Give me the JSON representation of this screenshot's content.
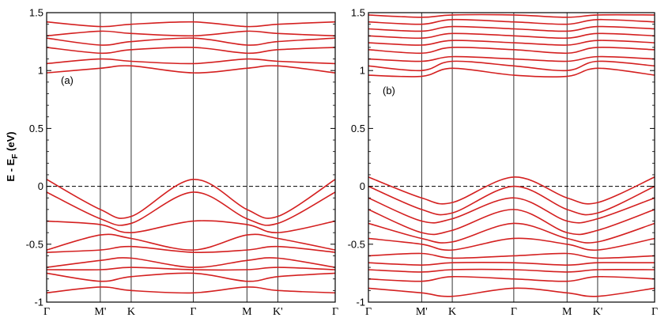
{
  "colors": {
    "band": "#d42020",
    "axis": "#000000",
    "fermi": "#000000"
  },
  "ylabel": "E - E",
  "ylabel_sub": "F",
  "ylabel_unit": " (eV)",
  "chart_data": [
    {
      "type": "line",
      "panel_label": "(a)",
      "ylabel": "E - E_F (eV)",
      "ylim": [
        -1,
        1.5
      ],
      "yticks": [
        "-1",
        "-0.5",
        "0",
        "0.5",
        "1",
        "1.5"
      ],
      "ytick_values": [
        -1,
        -0.5,
        0,
        0.5,
        1,
        1.5
      ],
      "kpath": [
        {
          "label": "Γ",
          "pos": 0
        },
        {
          "label": "M'",
          "pos": 0.186
        },
        {
          "label": "K",
          "pos": 0.293
        },
        {
          "label": "Γ",
          "pos": 0.508
        },
        {
          "label": "M",
          "pos": 0.694
        },
        {
          "label": "K'",
          "pos": 0.801
        },
        {
          "label": "Γ",
          "pos": 1
        }
      ],
      "fermi_level": 0,
      "series": [
        {
          "x": [
            0,
            0.186,
            0.293,
            0.508,
            0.694,
            0.801,
            1
          ],
          "y": [
            0.06,
            -0.2,
            -0.26,
            0.06,
            -0.2,
            -0.26,
            0.06
          ]
        },
        {
          "x": [
            0,
            0.186,
            0.293,
            0.508,
            0.694,
            0.801,
            1
          ],
          "y": [
            -0.05,
            -0.28,
            -0.32,
            -0.05,
            -0.28,
            -0.32,
            -0.05
          ]
        },
        {
          "x": [
            0,
            0.186,
            0.293,
            0.508,
            0.694,
            0.801,
            1
          ],
          "y": [
            -0.3,
            -0.33,
            -0.4,
            -0.3,
            -0.33,
            -0.4,
            -0.3
          ]
        },
        {
          "x": [
            0,
            0.186,
            0.293,
            0.508,
            0.694,
            0.801,
            1
          ],
          "y": [
            -0.55,
            -0.42,
            -0.45,
            -0.55,
            -0.42,
            -0.45,
            -0.55
          ]
        },
        {
          "x": [
            0,
            0.186,
            0.293,
            0.508,
            0.694,
            0.801,
            1
          ],
          "y": [
            -0.57,
            -0.55,
            -0.52,
            -0.57,
            -0.55,
            -0.52,
            -0.57
          ]
        },
        {
          "x": [
            0,
            0.186,
            0.293,
            0.508,
            0.694,
            0.801,
            1
          ],
          "y": [
            -0.7,
            -0.64,
            -0.62,
            -0.7,
            -0.64,
            -0.62,
            -0.7
          ]
        },
        {
          "x": [
            0,
            0.186,
            0.293,
            0.508,
            0.694,
            0.801,
            1
          ],
          "y": [
            -0.72,
            -0.72,
            -0.7,
            -0.72,
            -0.72,
            -0.7,
            -0.72
          ]
        },
        {
          "x": [
            0,
            0.186,
            0.293,
            0.508,
            0.694,
            0.801,
            1
          ],
          "y": [
            -0.75,
            -0.82,
            -0.78,
            -0.75,
            -0.82,
            -0.78,
            -0.75
          ]
        },
        {
          "x": [
            0,
            0.186,
            0.293,
            0.508,
            0.694,
            0.801,
            1
          ],
          "y": [
            -0.92,
            -0.87,
            -0.9,
            -0.92,
            -0.87,
            -0.9,
            -0.92
          ]
        },
        {
          "x": [
            0,
            0.186,
            0.293,
            0.508,
            0.694,
            0.801,
            1
          ],
          "y": [
            0.98,
            1.02,
            1.04,
            0.98,
            1.02,
            1.04,
            0.98
          ]
        },
        {
          "x": [
            0,
            0.186,
            0.293,
            0.508,
            0.694,
            0.801,
            1
          ],
          "y": [
            1.06,
            1.1,
            1.08,
            1.06,
            1.1,
            1.08,
            1.06
          ]
        },
        {
          "x": [
            0,
            0.186,
            0.293,
            0.508,
            0.694,
            0.801,
            1
          ],
          "y": [
            1.2,
            1.15,
            1.18,
            1.2,
            1.15,
            1.18,
            1.2
          ]
        },
        {
          "x": [
            0,
            0.186,
            0.293,
            0.508,
            0.694,
            0.801,
            1
          ],
          "y": [
            1.28,
            1.22,
            1.25,
            1.28,
            1.22,
            1.25,
            1.28
          ]
        },
        {
          "x": [
            0,
            0.186,
            0.293,
            0.508,
            0.694,
            0.801,
            1
          ],
          "y": [
            1.3,
            1.34,
            1.32,
            1.3,
            1.34,
            1.32,
            1.3
          ]
        },
        {
          "x": [
            0,
            0.186,
            0.293,
            0.508,
            0.694,
            0.801,
            1
          ],
          "y": [
            1.42,
            1.38,
            1.4,
            1.42,
            1.38,
            1.4,
            1.42
          ]
        }
      ]
    },
    {
      "type": "line",
      "panel_label": "(b)",
      "ylabel": "E - E_F (eV)",
      "ylim": [
        -1,
        1.5
      ],
      "yticks": [
        "-1",
        "-0.5",
        "0",
        "0.5",
        "1",
        "1.5"
      ],
      "ytick_values": [
        -1,
        -0.5,
        0,
        0.5,
        1,
        1.5
      ],
      "kpath": [
        {
          "label": "Γ",
          "pos": 0
        },
        {
          "label": "M'",
          "pos": 0.186
        },
        {
          "label": "K",
          "pos": 0.293
        },
        {
          "label": "Γ",
          "pos": 0.508
        },
        {
          "label": "M",
          "pos": 0.694
        },
        {
          "label": "K'",
          "pos": 0.801
        },
        {
          "label": "Γ",
          "pos": 1
        }
      ],
      "fermi_level": 0,
      "series": [
        {
          "x": [
            0,
            0.186,
            0.293,
            0.508,
            0.694,
            0.801,
            1
          ],
          "y": [
            0.08,
            -0.1,
            -0.14,
            0.08,
            -0.1,
            -0.14,
            0.08
          ]
        },
        {
          "x": [
            0,
            0.186,
            0.293,
            0.508,
            0.694,
            0.801,
            1
          ],
          "y": [
            0.0,
            -0.2,
            -0.23,
            0.0,
            -0.2,
            -0.23,
            0.0
          ]
        },
        {
          "x": [
            0,
            0.186,
            0.293,
            0.508,
            0.694,
            0.801,
            1
          ],
          "y": [
            -0.1,
            -0.3,
            -0.28,
            -0.1,
            -0.3,
            -0.28,
            -0.1
          ]
        },
        {
          "x": [
            0,
            0.186,
            0.293,
            0.508,
            0.694,
            0.801,
            1
          ],
          "y": [
            -0.2,
            -0.4,
            -0.38,
            -0.2,
            -0.4,
            -0.38,
            -0.2
          ]
        },
        {
          "x": [
            0,
            0.186,
            0.293,
            0.508,
            0.694,
            0.801,
            1
          ],
          "y": [
            -0.32,
            -0.45,
            -0.48,
            -0.32,
            -0.45,
            -0.48,
            -0.32
          ]
        },
        {
          "x": [
            0,
            0.186,
            0.293,
            0.508,
            0.694,
            0.801,
            1
          ],
          "y": [
            -0.45,
            -0.5,
            -0.55,
            -0.45,
            -0.5,
            -0.55,
            -0.45
          ]
        },
        {
          "x": [
            0,
            0.186,
            0.293,
            0.508,
            0.694,
            0.801,
            1
          ],
          "y": [
            -0.6,
            -0.58,
            -0.62,
            -0.6,
            -0.58,
            -0.62,
            -0.6
          ]
        },
        {
          "x": [
            0,
            0.186,
            0.293,
            0.508,
            0.694,
            0.801,
            1
          ],
          "y": [
            -0.66,
            -0.68,
            -0.66,
            -0.66,
            -0.68,
            -0.66,
            -0.66
          ]
        },
        {
          "x": [
            0,
            0.186,
            0.293,
            0.508,
            0.694,
            0.801,
            1
          ],
          "y": [
            -0.72,
            -0.74,
            -0.72,
            -0.72,
            -0.74,
            -0.72,
            -0.72
          ]
        },
        {
          "x": [
            0,
            0.186,
            0.293,
            0.508,
            0.694,
            0.801,
            1
          ],
          "y": [
            -0.8,
            -0.82,
            -0.78,
            -0.8,
            -0.82,
            -0.78,
            -0.8
          ]
        },
        {
          "x": [
            0,
            0.186,
            0.293,
            0.508,
            0.694,
            0.801,
            1
          ],
          "y": [
            -0.88,
            -0.92,
            -0.95,
            -0.88,
            -0.92,
            -0.95,
            -0.88
          ]
        },
        {
          "x": [
            0,
            0.186,
            0.293,
            0.508,
            0.694,
            0.801,
            1
          ],
          "y": [
            0.96,
            0.95,
            1.02,
            0.96,
            0.95,
            1.02,
            0.96
          ]
        },
        {
          "x": [
            0,
            0.186,
            0.293,
            0.508,
            0.694,
            0.801,
            1
          ],
          "y": [
            1.04,
            1.0,
            1.08,
            1.04,
            1.0,
            1.08,
            1.04
          ]
        },
        {
          "x": [
            0,
            0.186,
            0.293,
            0.508,
            0.694,
            0.801,
            1
          ],
          "y": [
            1.1,
            1.08,
            1.12,
            1.1,
            1.08,
            1.12,
            1.1
          ]
        },
        {
          "x": [
            0,
            0.186,
            0.293,
            0.508,
            0.694,
            0.801,
            1
          ],
          "y": [
            1.18,
            1.15,
            1.2,
            1.18,
            1.15,
            1.2,
            1.18
          ]
        },
        {
          "x": [
            0,
            0.186,
            0.293,
            0.508,
            0.694,
            0.801,
            1
          ],
          "y": [
            1.24,
            1.22,
            1.26,
            1.24,
            1.22,
            1.26,
            1.24
          ]
        },
        {
          "x": [
            0,
            0.186,
            0.293,
            0.508,
            0.694,
            0.801,
            1
          ],
          "y": [
            1.3,
            1.28,
            1.32,
            1.3,
            1.28,
            1.32,
            1.3
          ]
        },
        {
          "x": [
            0,
            0.186,
            0.293,
            0.508,
            0.694,
            0.801,
            1
          ],
          "y": [
            1.36,
            1.34,
            1.38,
            1.36,
            1.34,
            1.38,
            1.36
          ]
        },
        {
          "x": [
            0,
            0.186,
            0.293,
            0.508,
            0.694,
            0.801,
            1
          ],
          "y": [
            1.42,
            1.4,
            1.44,
            1.42,
            1.4,
            1.44,
            1.42
          ]
        },
        {
          "x": [
            0,
            0.186,
            0.293,
            0.508,
            0.694,
            0.801,
            1
          ],
          "y": [
            1.48,
            1.46,
            1.48,
            1.48,
            1.46,
            1.48,
            1.48
          ]
        }
      ]
    }
  ]
}
